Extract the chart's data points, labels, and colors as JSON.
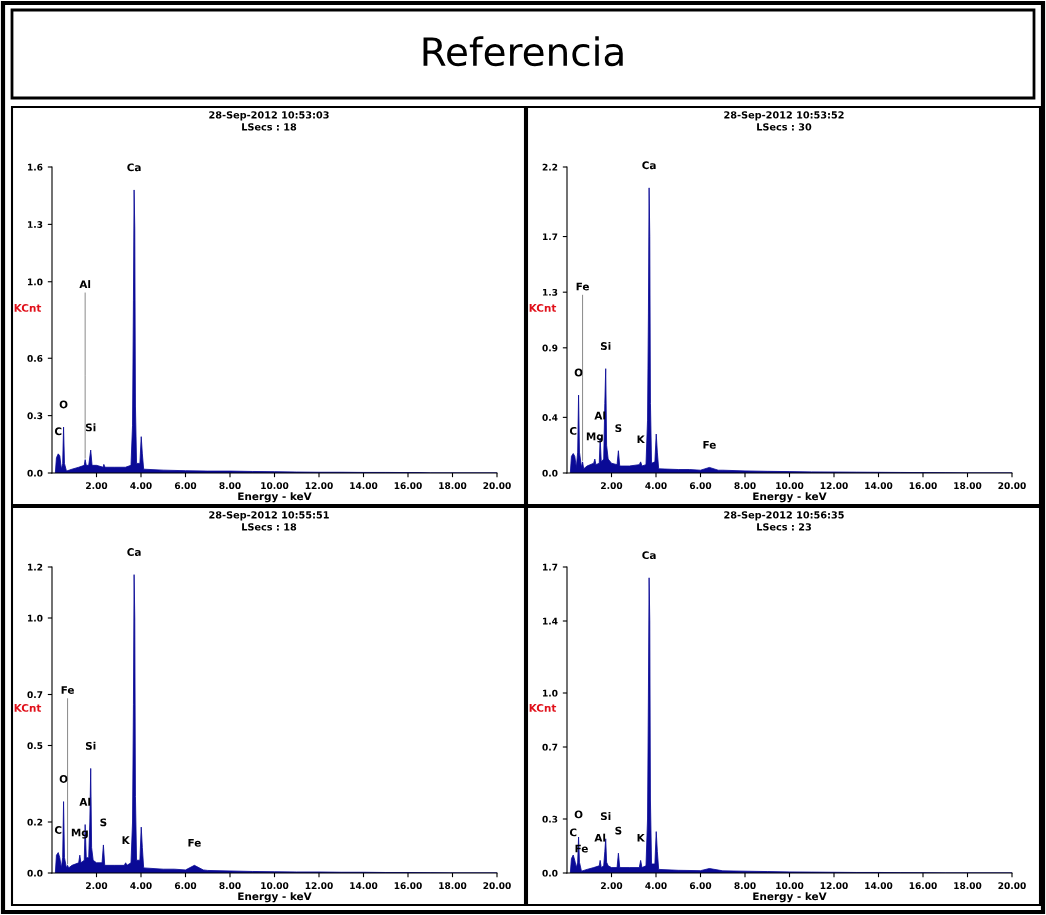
{
  "chart_data": [
    {
      "type": "area",
      "title": "28-Sep-2012 10:53:03",
      "subtitle": "LSecs : 18",
      "xlabel": "Energy - keV",
      "ylabel": "KCnt",
      "grid": false,
      "xlim": [
        0,
        20
      ],
      "xticks": [
        {
          "value": 2,
          "label": "2.00"
        },
        {
          "value": 4,
          "label": "4.00"
        },
        {
          "value": 6,
          "label": "6.00"
        },
        {
          "value": 8,
          "label": "8.00"
        },
        {
          "value": 10,
          "label": "10.00"
        },
        {
          "value": 12,
          "label": "12.00"
        },
        {
          "value": 14,
          "label": "14.00"
        },
        {
          "value": 16,
          "label": "16.00"
        },
        {
          "value": 18,
          "label": "18.00"
        },
        {
          "value": 20,
          "label": "20.00"
        }
      ],
      "ylim": [
        0,
        1.6
      ],
      "yticks": [
        {
          "value": 0,
          "label": "0.0"
        },
        {
          "value": 0.3,
          "label": "0.3"
        },
        {
          "value": 0.6,
          "label": "0.6"
        },
        {
          "value": 1.0,
          "label": "1.0"
        },
        {
          "value": 1.3,
          "label": "1.3"
        },
        {
          "value": 1.6,
          "label": "1.6"
        }
      ],
      "series": [
        {
          "color": "#0a0a96",
          "x": [
            0.15,
            0.2,
            0.28,
            0.35,
            0.42,
            0.48,
            0.52,
            0.56,
            0.65,
            0.9,
            1.2,
            1.45,
            1.49,
            1.54,
            1.65,
            1.74,
            1.8,
            2.0,
            2.3,
            2.33,
            2.38,
            2.8,
            3.3,
            3.55,
            3.62,
            3.66,
            3.69,
            3.72,
            3.75,
            3.8,
            3.95,
            4.01,
            4.06,
            4.12,
            5.0,
            6.0,
            7.0,
            8.0,
            9.0,
            10.0,
            11.0,
            12.0,
            13.0,
            14.0,
            15.0,
            16.5,
            17.0,
            20.0
          ],
          "values": [
            0,
            0.08,
            0.1,
            0.09,
            0.02,
            0.05,
            0.24,
            0.05,
            0.01,
            0.02,
            0.03,
            0.04,
            0.07,
            0.04,
            0.04,
            0.12,
            0.04,
            0.04,
            0.03,
            0.045,
            0.03,
            0.03,
            0.03,
            0.04,
            0.25,
            0.9,
            1.48,
            1.28,
            0.35,
            0.05,
            0.05,
            0.19,
            0.1,
            0.02,
            0.015,
            0.012,
            0.01,
            0.01,
            0.008,
            0.007,
            0.005,
            0.004,
            0.004,
            0.003,
            0.003,
            0.002,
            0,
            0
          ]
        }
      ],
      "annotations": [
        "Referencia",
        {
          "text": "Ca",
          "x": 3.69,
          "y": 1.48
        },
        {
          "text": "O",
          "x": 0.52,
          "y": 0.24
        },
        {
          "text": "Si",
          "x": 1.74,
          "y": 0.12
        },
        {
          "text": "Al",
          "x": 1.49,
          "y": 0.07
        },
        {
          "text": "C",
          "x": 0.28,
          "y": 0.1
        }
      ]
    },
    {
      "type": "area",
      "title": "28-Sep-2012 10:53:52",
      "subtitle": "LSecs : 30",
      "xlabel": "Energy - keV",
      "ylabel": "KCnt",
      "grid": false,
      "xlim": [
        0,
        20
      ],
      "xticks": [
        {
          "value": 2,
          "label": "2.00"
        },
        {
          "value": 4,
          "label": "4.00"
        },
        {
          "value": 6,
          "label": "6.00"
        },
        {
          "value": 8,
          "label": "8.00"
        },
        {
          "value": 10,
          "label": "10.00"
        },
        {
          "value": 12,
          "label": "12.00"
        },
        {
          "value": 14,
          "label": "14.00"
        },
        {
          "value": 16,
          "label": "16.00"
        },
        {
          "value": 18,
          "label": "18.00"
        },
        {
          "value": 20,
          "label": "20.00"
        }
      ],
      "ylim": [
        0,
        2.2
      ],
      "yticks": [
        {
          "value": 0,
          "label": "0.0"
        },
        {
          "value": 0.4,
          "label": "0.4"
        },
        {
          "value": 0.9,
          "label": "0.9"
        },
        {
          "value": 1.3,
          "label": "1.3"
        },
        {
          "value": 1.7,
          "label": "1.7"
        },
        {
          "value": 2.2,
          "label": "2.2"
        }
      ],
      "series": [
        {
          "color": "#0a0a96",
          "x": [
            0.15,
            0.2,
            0.28,
            0.35,
            0.42,
            0.48,
            0.52,
            0.56,
            0.65,
            0.7,
            0.75,
            0.9,
            1.2,
            1.25,
            1.3,
            1.45,
            1.49,
            1.54,
            1.65,
            1.7,
            1.74,
            1.78,
            1.85,
            2.0,
            2.25,
            2.31,
            2.37,
            2.8,
            3.25,
            3.31,
            3.37,
            3.55,
            3.62,
            3.66,
            3.69,
            3.72,
            3.75,
            3.8,
            3.95,
            4.01,
            4.06,
            4.12,
            5.0,
            5.5,
            6.0,
            6.4,
            6.8,
            7.0,
            8.0,
            9.0,
            10.0,
            11.0,
            12.0,
            13.0,
            14.0,
            15.0,
            16.0,
            17.0,
            18.0,
            20.0
          ],
          "values": [
            0,
            0.12,
            0.14,
            0.12,
            0.04,
            0.15,
            0.56,
            0.15,
            0.04,
            0.08,
            0.03,
            0.05,
            0.07,
            0.1,
            0.06,
            0.07,
            0.25,
            0.08,
            0.1,
            0.5,
            0.75,
            0.2,
            0.1,
            0.07,
            0.06,
            0.16,
            0.05,
            0.05,
            0.06,
            0.08,
            0.05,
            0.06,
            0.38,
            1.15,
            2.05,
            1.7,
            0.5,
            0.07,
            0.08,
            0.28,
            0.15,
            0.03,
            0.025,
            0.025,
            0.02,
            0.04,
            0.02,
            0.02,
            0.015,
            0.012,
            0.01,
            0.008,
            0.007,
            0.006,
            0.005,
            0.004,
            0.003,
            0.002,
            0,
            0
          ]
        }
      ],
      "annotations": [
        {
          "text": "Ca",
          "x": 3.69,
          "y": 2.05
        },
        {
          "text": "Si",
          "x": 1.74,
          "y": 0.75
        },
        {
          "text": "O",
          "x": 0.52,
          "y": 0.56
        },
        {
          "text": "S",
          "x": 2.31,
          "y": 0.16
        },
        {
          "text": "Al",
          "x": 1.49,
          "y": 0.25
        },
        {
          "text": "Mg",
          "x": 1.25,
          "y": 0.1
        },
        {
          "text": "C",
          "x": 0.28,
          "y": 0.14
        },
        {
          "text": "Fe",
          "x": 0.7,
          "y": 0.08
        },
        {
          "text": "K",
          "x": 3.31,
          "y": 0.08
        },
        {
          "text": "Fe",
          "x": 6.4,
          "y": 0.04
        }
      ]
    },
    {
      "type": "area",
      "title": "28-Sep-2012 10:55:51",
      "subtitle": "LSecs : 18",
      "xlabel": "Energy - keV",
      "ylabel": "KCnt",
      "grid": false,
      "xlim": [
        0,
        20
      ],
      "xticks": [
        {
          "value": 2,
          "label": "2.00"
        },
        {
          "value": 4,
          "label": "4.00"
        },
        {
          "value": 6,
          "label": "6.00"
        },
        {
          "value": 8,
          "label": "8.00"
        },
        {
          "value": 10,
          "label": "10.00"
        },
        {
          "value": 12,
          "label": "12.00"
        },
        {
          "value": 14,
          "label": "14.00"
        },
        {
          "value": 16,
          "label": "16.00"
        },
        {
          "value": 18,
          "label": "18.00"
        },
        {
          "value": 20,
          "label": "20.00"
        }
      ],
      "ylim": [
        0,
        1.2
      ],
      "yticks": [
        {
          "value": 0,
          "label": "0.0"
        },
        {
          "value": 0.2,
          "label": "0.2"
        },
        {
          "value": 0.5,
          "label": "0.5"
        },
        {
          "value": 0.7,
          "label": "0.7"
        },
        {
          "value": 1.0,
          "label": "1.0"
        },
        {
          "value": 1.2,
          "label": "1.2"
        }
      ],
      "series": [
        {
          "color": "#0a0a96",
          "x": [
            0.15,
            0.2,
            0.28,
            0.35,
            0.42,
            0.48,
            0.52,
            0.56,
            0.65,
            0.7,
            0.75,
            0.9,
            1.2,
            1.25,
            1.3,
            1.45,
            1.49,
            1.54,
            1.65,
            1.7,
            1.74,
            1.78,
            1.85,
            2.0,
            2.25,
            2.31,
            2.37,
            2.8,
            3.25,
            3.31,
            3.37,
            3.55,
            3.62,
            3.66,
            3.69,
            3.72,
            3.75,
            3.8,
            3.95,
            4.01,
            4.06,
            4.12,
            5.0,
            5.5,
            6.0,
            6.4,
            6.8,
            7.0,
            8.0,
            9.0,
            10.0,
            11.0,
            12.0,
            13.0,
            14.0,
            15.0,
            16.0,
            17.0,
            18.0,
            20.0
          ],
          "values": [
            0,
            0.07,
            0.08,
            0.06,
            0.02,
            0.06,
            0.28,
            0.06,
            0.02,
            0.03,
            0.02,
            0.03,
            0.04,
            0.07,
            0.04,
            0.05,
            0.19,
            0.06,
            0.06,
            0.2,
            0.41,
            0.1,
            0.05,
            0.04,
            0.04,
            0.11,
            0.03,
            0.03,
            0.03,
            0.04,
            0.03,
            0.04,
            0.2,
            0.66,
            1.17,
            1.0,
            0.3,
            0.05,
            0.05,
            0.18,
            0.1,
            0.02,
            0.015,
            0.015,
            0.012,
            0.03,
            0.012,
            0.01,
            0.008,
            0.006,
            0.005,
            0.004,
            0.004,
            0.003,
            0.003,
            0.002,
            0.002,
            0.001,
            0,
            0
          ]
        }
      ],
      "annotations": [
        {
          "text": "Ca",
          "x": 3.69,
          "y": 1.17
        },
        {
          "text": "Si",
          "x": 1.74,
          "y": 0.41
        },
        {
          "text": "O",
          "x": 0.52,
          "y": 0.28
        },
        {
          "text": "S",
          "x": 2.31,
          "y": 0.11
        },
        {
          "text": "Al",
          "x": 1.49,
          "y": 0.19
        },
        {
          "text": "Mg",
          "x": 1.25,
          "y": 0.07
        },
        {
          "text": "C",
          "x": 0.28,
          "y": 0.08
        },
        {
          "text": "Fe",
          "x": 0.7,
          "y": 0.03
        },
        {
          "text": "K",
          "x": 3.31,
          "y": 0.04
        },
        {
          "text": "Fe",
          "x": 6.4,
          "y": 0.03
        }
      ]
    },
    {
      "type": "area",
      "title": "28-Sep-2012 10:56:35",
      "subtitle": "LSecs : 23",
      "xlabel": "Energy - keV",
      "ylabel": "KCnt",
      "grid": false,
      "xlim": [
        0,
        20
      ],
      "xticks": [
        {
          "value": 2,
          "label": "2.00"
        },
        {
          "value": 4,
          "label": "4.00"
        },
        {
          "value": 6,
          "label": "6.00"
        },
        {
          "value": 8,
          "label": "8.00"
        },
        {
          "value": 10,
          "label": "10.00"
        },
        {
          "value": 12,
          "label": "12.00"
        },
        {
          "value": 14,
          "label": "14.00"
        },
        {
          "value": 16,
          "label": "16.00"
        },
        {
          "value": 18,
          "label": "18.00"
        },
        {
          "value": 20,
          "label": "20.00"
        }
      ],
      "ylim": [
        0,
        1.7
      ],
      "yticks": [
        {
          "value": 0,
          "label": "0.0"
        },
        {
          "value": 0.3,
          "label": "0.3"
        },
        {
          "value": 0.7,
          "label": "0.7"
        },
        {
          "value": 1.0,
          "label": "1.0"
        },
        {
          "value": 1.4,
          "label": "1.4"
        },
        {
          "value": 1.7,
          "label": "1.7"
        }
      ],
      "series": [
        {
          "color": "#0a0a96",
          "x": [
            0.15,
            0.2,
            0.28,
            0.35,
            0.42,
            0.48,
            0.52,
            0.56,
            0.65,
            0.9,
            1.2,
            1.45,
            1.49,
            1.54,
            1.65,
            1.7,
            1.74,
            1.78,
            1.85,
            2.0,
            2.25,
            2.31,
            2.37,
            2.8,
            3.25,
            3.31,
            3.37,
            3.55,
            3.62,
            3.66,
            3.69,
            3.72,
            3.75,
            3.8,
            3.95,
            4.01,
            4.06,
            4.12,
            5.0,
            6.0,
            6.4,
            7.0,
            8.0,
            9.0,
            10.0,
            11.0,
            12.0,
            13.0,
            14.0,
            15.0,
            16.0,
            17.0,
            20.0
          ],
          "values": [
            0,
            0.08,
            0.1,
            0.07,
            0.03,
            0.06,
            0.2,
            0.06,
            0.01,
            0.02,
            0.03,
            0.04,
            0.07,
            0.03,
            0.04,
            0.12,
            0.19,
            0.06,
            0.04,
            0.03,
            0.03,
            0.11,
            0.03,
            0.03,
            0.03,
            0.07,
            0.03,
            0.04,
            0.3,
            1.0,
            1.64,
            1.4,
            0.4,
            0.05,
            0.05,
            0.23,
            0.12,
            0.02,
            0.015,
            0.013,
            0.025,
            0.012,
            0.01,
            0.008,
            0.006,
            0.005,
            0.004,
            0.003,
            0.003,
            0.002,
            0.001,
            0,
            0
          ]
        }
      ],
      "annotations": [
        {
          "text": "Ca",
          "x": 3.69,
          "y": 1.64
        },
        {
          "text": "Si",
          "x": 1.74,
          "y": 0.19
        },
        {
          "text": "O",
          "x": 0.52,
          "y": 0.2
        },
        {
          "text": "S",
          "x": 2.31,
          "y": 0.11
        },
        {
          "text": "Al",
          "x": 1.49,
          "y": 0.07
        },
        {
          "text": "C",
          "x": 0.28,
          "y": 0.1
        },
        {
          "text": "Fe",
          "x": 0.65,
          "y": 0.01
        },
        {
          "text": "K",
          "x": 3.31,
          "y": 0.07
        }
      ]
    }
  ]
}
